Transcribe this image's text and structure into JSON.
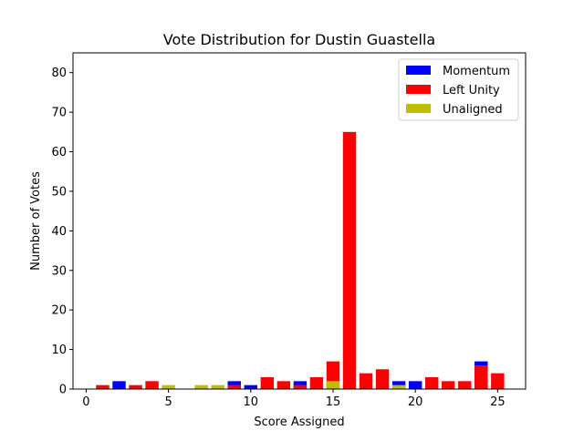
{
  "chart_data": {
    "type": "bar",
    "stacked": true,
    "title": "Vote Distribution for Dustin Guastella",
    "xlabel": "Score Assigned",
    "ylabel": "Number of Votes",
    "xlim": [
      -0.8,
      26.7
    ],
    "ylim": [
      0,
      85
    ],
    "xticks": [
      0,
      5,
      10,
      15,
      20,
      25
    ],
    "yticks": [
      0,
      10,
      20,
      30,
      40,
      50,
      60,
      70,
      80
    ],
    "grid": false,
    "legend_position": "top-right",
    "series": [
      {
        "name": "Momentum",
        "color": "#0000ff",
        "x": [
          2,
          9,
          10,
          13,
          19,
          20,
          24
        ],
        "values": [
          2,
          2,
          1,
          2,
          2,
          2,
          7
        ]
      },
      {
        "name": "Left Unity",
        "color": "#ff0000",
        "x": [
          1,
          3,
          4,
          9,
          11,
          12,
          13,
          14,
          15,
          16,
          17,
          18,
          21,
          22,
          23,
          24,
          25
        ],
        "values": [
          1,
          1,
          2,
          1,
          3,
          2,
          1,
          3,
          7,
          65,
          4,
          5,
          3,
          2,
          2,
          6,
          4
        ]
      },
      {
        "name": "Unaligned",
        "color": "#bfbf00",
        "x": [
          5,
          7,
          8,
          15,
          19
        ],
        "values": [
          1,
          1,
          1,
          2,
          1
        ]
      }
    ]
  }
}
